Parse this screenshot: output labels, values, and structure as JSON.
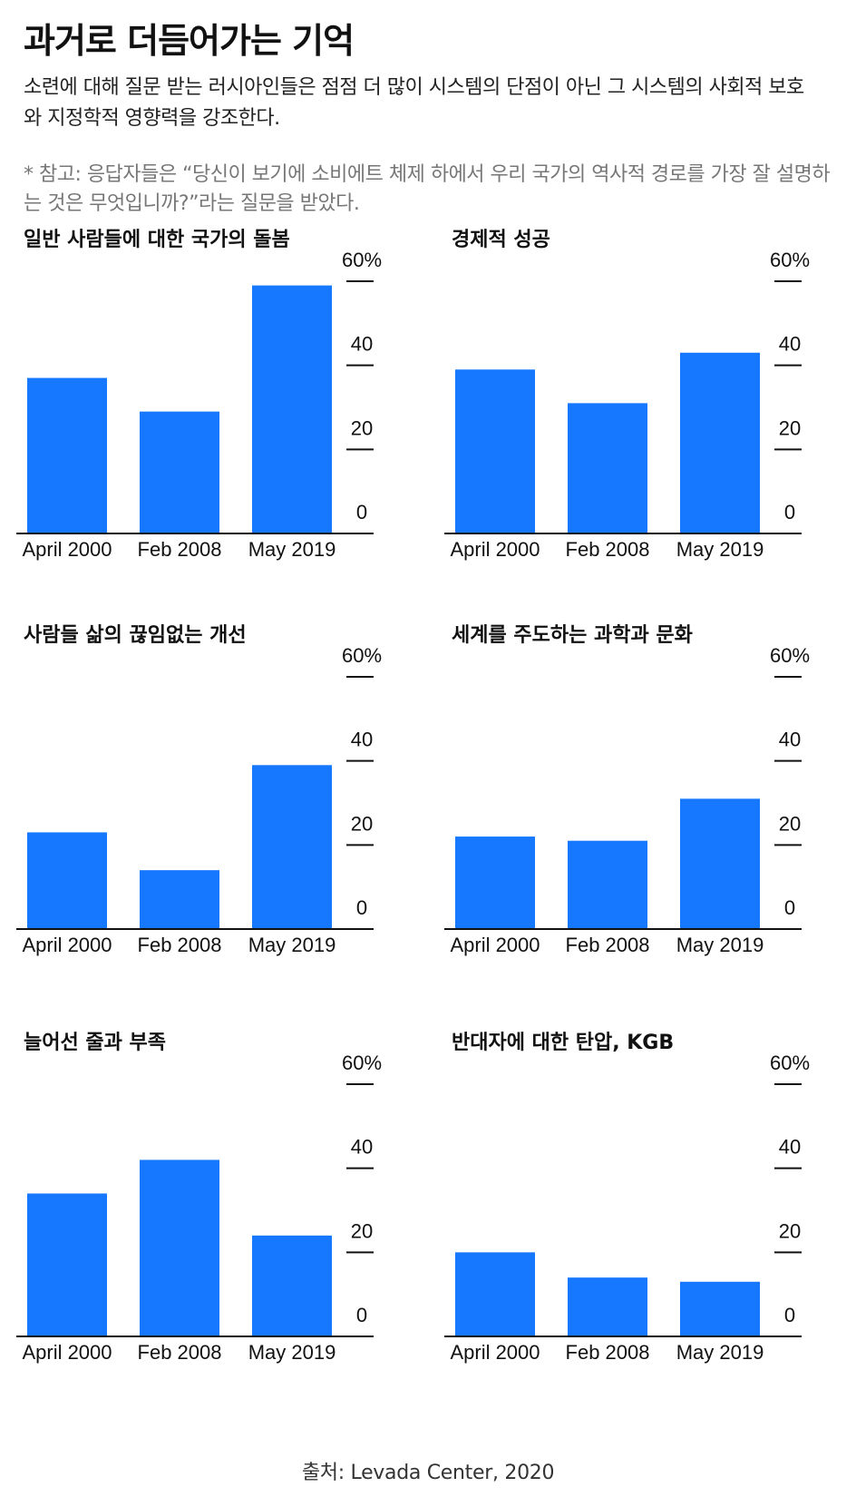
{
  "title": "과거로 더듬어가는 기억",
  "subtitle": "소련에 대해 질문 받는 러시아인들은 점점 더 많이 시스템의 단점이 아닌 그 시스템의 사회적 보호와 지정학적 영향력을 강조한다.",
  "note": "* 참고: 응답자들은 “당신이 보기에 소비에트 체제 하에서 우리 국가의 역사적 경로를 가장 잘 설명하는 것은 무엇입니까?”라는 질문을 받았다.",
  "source": "출처: Levada Center, 2020",
  "colors": {
    "bar": "#1677ff",
    "axis": "#111111"
  },
  "chart_data": [
    {
      "type": "bar",
      "title": "일반 사람들에 대한 국가의 돌봄",
      "categories": [
        "April 2000",
        "Feb 2008",
        "May 2019"
      ],
      "values": [
        37,
        29,
        59
      ],
      "ylim": [
        0,
        60
      ],
      "yticks": [
        "0",
        "20",
        "40",
        "60%"
      ]
    },
    {
      "type": "bar",
      "title": "경제적 성공",
      "categories": [
        "April 2000",
        "Feb 2008",
        "May 2019"
      ],
      "values": [
        39,
        31,
        43
      ],
      "ylim": [
        0,
        60
      ],
      "yticks": [
        "0",
        "20",
        "40",
        "60%"
      ]
    },
    {
      "type": "bar",
      "title": "사람들 삶의 끊임없는 개선",
      "categories": [
        "April 2000",
        "Feb 2008",
        "May 2019"
      ],
      "values": [
        23,
        14,
        39
      ],
      "ylim": [
        0,
        60
      ],
      "yticks": [
        "0",
        "20",
        "40",
        "60%"
      ]
    },
    {
      "type": "bar",
      "title": "세계를 주도하는 과학과 문화",
      "categories": [
        "April 2000",
        "Feb 2008",
        "May 2019"
      ],
      "values": [
        22,
        21,
        31
      ],
      "ylim": [
        0,
        60
      ],
      "yticks": [
        "0",
        "20",
        "40",
        "60%"
      ]
    },
    {
      "type": "bar",
      "title": "늘어선 줄과 부족",
      "categories": [
        "April 2000",
        "Feb 2008",
        "May 2019"
      ],
      "values": [
        34,
        42,
        24
      ],
      "ylim": [
        0,
        60
      ],
      "yticks": [
        "0",
        "20",
        "40",
        "60%"
      ]
    },
    {
      "type": "bar",
      "title": "반대자에 대한 탄압, KGB",
      "categories": [
        "April 2000",
        "Feb 2008",
        "May 2019"
      ],
      "values": [
        20,
        14,
        13
      ],
      "ylim": [
        0,
        60
      ],
      "yticks": [
        "0",
        "20",
        "40",
        "60%"
      ]
    }
  ]
}
